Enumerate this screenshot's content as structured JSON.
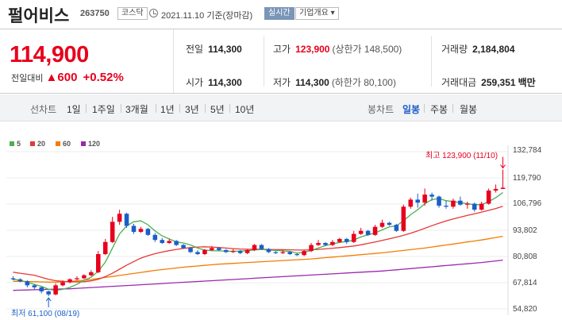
{
  "header": {
    "name": "펄어비스",
    "code": "263750",
    "market": "코스닥",
    "date": "2021.11.10 기준(장마감)",
    "live_label": "실시간",
    "info_label": "기업개요 ▾"
  },
  "quote": {
    "price": "114,900",
    "change_label": "전일대비",
    "change_amount": "▲600",
    "change_pct": "+0.52%",
    "prev_close_label": "전일",
    "prev_close": "114,300",
    "high_label": "고가",
    "high": "123,900",
    "upper_limit": "(상한가 148,500)",
    "volume_label": "거래량",
    "volume": "2,184,804",
    "open_label": "시가",
    "open": "114,300",
    "low_label": "저가",
    "low": "114,300",
    "lower_limit": "(하한가 80,100)",
    "amount_label": "거래대금",
    "amount": "259,351",
    "amount_unit": "백만"
  },
  "toolbar": {
    "line_label": "선차트",
    "periods": [
      "1일",
      "1주일",
      "3개월",
      "1년",
      "3년",
      "5년",
      "10년"
    ],
    "candle_label": "봉차트",
    "candle_periods": [
      "일봉",
      "주봉",
      "월봉"
    ],
    "selected_candle": "일봉"
  },
  "chart_data": {
    "type": "candlestick",
    "legend": [
      {
        "name": "5",
        "color": "#4caf50"
      },
      {
        "name": "20",
        "color": "#e53935"
      },
      {
        "name": "60",
        "color": "#f57c00"
      },
      {
        "name": "120",
        "color": "#9c27b0"
      }
    ],
    "y_ticks": [
      "132,784",
      "119,790",
      "106,796",
      "93,802",
      "80,808",
      "67,814",
      "54,820"
    ],
    "ylim": [
      54820,
      132784
    ],
    "high_annotation": "최고 123,900 (11/10)",
    "low_annotation": "최저 61,100 (08/19)",
    "up_color": "#e8001c",
    "down_color": "#1a5ec9",
    "candles": [
      [
        70000,
        69500,
        71000,
        69000
      ],
      [
        69500,
        68500,
        70000,
        68000
      ],
      [
        68500,
        66500,
        69000,
        65500
      ],
      [
        66500,
        65500,
        67000,
        64500
      ],
      [
        65500,
        63500,
        66000,
        62500
      ],
      [
        63500,
        62000,
        64000,
        61100
      ],
      [
        62000,
        66500,
        67500,
        61500
      ],
      [
        66500,
        68000,
        69000,
        66000
      ],
      [
        68000,
        69500,
        70000,
        67500
      ],
      [
        69500,
        70000,
        71000,
        69000
      ],
      [
        70000,
        71500,
        72000,
        69500
      ],
      [
        71500,
        73000,
        74000,
        71000
      ],
      [
        73000,
        82000,
        83500,
        72500
      ],
      [
        82000,
        88000,
        89500,
        81500
      ],
      [
        88000,
        98000,
        100500,
        87500
      ],
      [
        98000,
        102000,
        104000,
        96500
      ],
      [
        102000,
        96000,
        102500,
        95000
      ],
      [
        96000,
        93000,
        97000,
        92000
      ],
      [
        93000,
        94500,
        95500,
        92500
      ],
      [
        94500,
        91500,
        95000,
        91000
      ],
      [
        91500,
        89000,
        92500,
        88000
      ],
      [
        89000,
        87500,
        90000,
        87000
      ],
      [
        87500,
        88500,
        89500,
        87000
      ],
      [
        88500,
        86500,
        89000,
        86000
      ],
      [
        86500,
        85000,
        87000,
        84500
      ],
      [
        85000,
        83000,
        85500,
        82500
      ],
      [
        83000,
        82000,
        84000,
        81500
      ],
      [
        82000,
        84000,
        84500,
        81500
      ],
      [
        84000,
        85000,
        86000,
        83500
      ],
      [
        85000,
        84000,
        85500,
        83500
      ],
      [
        84000,
        83000,
        84500,
        82500
      ],
      [
        83000,
        83500,
        84500,
        82500
      ],
      [
        83500,
        82500,
        84000,
        82000
      ],
      [
        82500,
        84000,
        84500,
        82000
      ],
      [
        84000,
        86500,
        87000,
        83500
      ],
      [
        86500,
        84500,
        87000,
        84000
      ],
      [
        84500,
        83000,
        85000,
        82500
      ],
      [
        83000,
        82500,
        83500,
        82000
      ],
      [
        82500,
        83000,
        84000,
        82000
      ],
      [
        83000,
        82000,
        83500,
        81500
      ],
      [
        82000,
        81500,
        82500,
        81000
      ],
      [
        81500,
        83500,
        84000,
        81000
      ],
      [
        83500,
        86500,
        87500,
        83000
      ],
      [
        86500,
        87500,
        89000,
        86000
      ],
      [
        87500,
        86500,
        88000,
        86000
      ],
      [
        86500,
        88000,
        89000,
        86000
      ],
      [
        88000,
        89500,
        90000,
        87500
      ],
      [
        89500,
        88000,
        90000,
        87000
      ],
      [
        88000,
        92000,
        93500,
        87500
      ],
      [
        92000,
        93500,
        95000,
        91500
      ],
      [
        93500,
        91500,
        94000,
        91000
      ],
      [
        91500,
        95500,
        96500,
        91000
      ],
      [
        95500,
        97500,
        99000,
        95000
      ],
      [
        97500,
        96500,
        98000,
        96000
      ],
      [
        96500,
        93500,
        97000,
        93000
      ],
      [
        93500,
        105500,
        106500,
        93000
      ],
      [
        105500,
        109000,
        110000,
        104500
      ],
      [
        109000,
        107500,
        112000,
        105000
      ],
      [
        107500,
        111500,
        114500,
        106000
      ],
      [
        111500,
        110500,
        112500,
        108500
      ],
      [
        110500,
        106000,
        111000,
        105000
      ],
      [
        106000,
        105500,
        108500,
        104500
      ],
      [
        105500,
        108500,
        109500,
        104500
      ],
      [
        108500,
        106500,
        110500,
        106000
      ],
      [
        106500,
        107000,
        108000,
        104500
      ],
      [
        107000,
        104000,
        107500,
        103000
      ],
      [
        104000,
        107000,
        108000,
        103500
      ],
      [
        107000,
        113500,
        114500,
        106500
      ],
      [
        113500,
        114300,
        116500,
        112500
      ],
      [
        114300,
        114900,
        123900,
        114300
      ]
    ],
    "ma5": [
      69500,
      69000,
      68000,
      67000,
      66000,
      64500,
      64000,
      64500,
      65500,
      67000,
      69000,
      70500,
      73500,
      78000,
      85000,
      92000,
      96000,
      98000,
      98500,
      96500,
      93500,
      91000,
      89500,
      88000,
      87500,
      86500,
      85000,
      84000,
      83700,
      83600,
      83400,
      83400,
      83500,
      83700,
      84000,
      84300,
      84000,
      83800,
      83600,
      83300,
      82500,
      82800,
      83800,
      85000,
      86200,
      87000,
      87800,
      88200,
      89000,
      90500,
      91500,
      92500,
      94000,
      95500,
      96000,
      98500,
      101500,
      104000,
      107000,
      109000,
      109500,
      108500,
      108000,
      107500,
      107000,
      106500,
      106500,
      108000,
      110000,
      112500
    ],
    "ma20": [
      73000,
      72500,
      72000,
      71500,
      70500,
      69500,
      68800,
      68500,
      68300,
      68200,
      68300,
      68700,
      69500,
      70800,
      72500,
      74500,
      76500,
      78300,
      80000,
      81200,
      82200,
      83000,
      83700,
      84300,
      84800,
      85200,
      85500,
      85600,
      85500,
      85300,
      85000,
      84700,
      84500,
      84400,
      84400,
      84400,
      84300,
      84200,
      84200,
      84100,
      84000,
      84000,
      84100,
      84300,
      84600,
      84900,
      85200,
      85600,
      86000,
      86600,
      87300,
      88000,
      88800,
      89600,
      90400,
      91300,
      92300,
      93500,
      94800,
      96100,
      97300,
      98400,
      99400,
      100300,
      101200,
      102000,
      102800,
      103700,
      104600,
      105700
    ],
    "ma60": [
      68500,
      68500,
      68400,
      68300,
      68200,
      68100,
      68100,
      68200,
      68400,
      68700,
      69000,
      69400,
      69900,
      70400,
      70900,
      71400,
      71900,
      72400,
      72900,
      73400,
      73900,
      74300,
      74700,
      75100,
      75500,
      75800,
      76100,
      76400,
      76700,
      77000,
      77200,
      77400,
      77600,
      77800,
      78000,
      78200,
      78400,
      78600,
      78800,
      79000,
      79200,
      79400,
      79600,
      79900,
      80200,
      80500,
      80800,
      81100,
      81400,
      81700,
      82000,
      82300,
      82600,
      83000,
      83400,
      83800,
      84200,
      84600,
      85000,
      85500,
      86000,
      86500,
      87000,
      87500,
      88000,
      88500,
      89000,
      89600,
      90200,
      90800
    ],
    "ma120": [
      64000,
      64100,
      64200,
      64300,
      64400,
      64500,
      64600,
      64700,
      64800,
      65000,
      65200,
      65400,
      65600,
      65800,
      66000,
      66200,
      66400,
      66600,
      66800,
      67000,
      67200,
      67400,
      67600,
      67800,
      68000,
      68200,
      68400,
      68600,
      68800,
      69000,
      69200,
      69400,
      69600,
      69800,
      70000,
      70200,
      70400,
      70600,
      70800,
      71000,
      71200,
      71400,
      71600,
      71800,
      72000,
      72200,
      72400,
      72600,
      72800,
      73000,
      73200,
      73400,
      73600,
      73900,
      74200,
      74500,
      74800,
      75100,
      75400,
      75700,
      76000,
      76300,
      76600,
      76900,
      77200,
      77500,
      77800,
      78200,
      78600,
      79000
    ]
  }
}
